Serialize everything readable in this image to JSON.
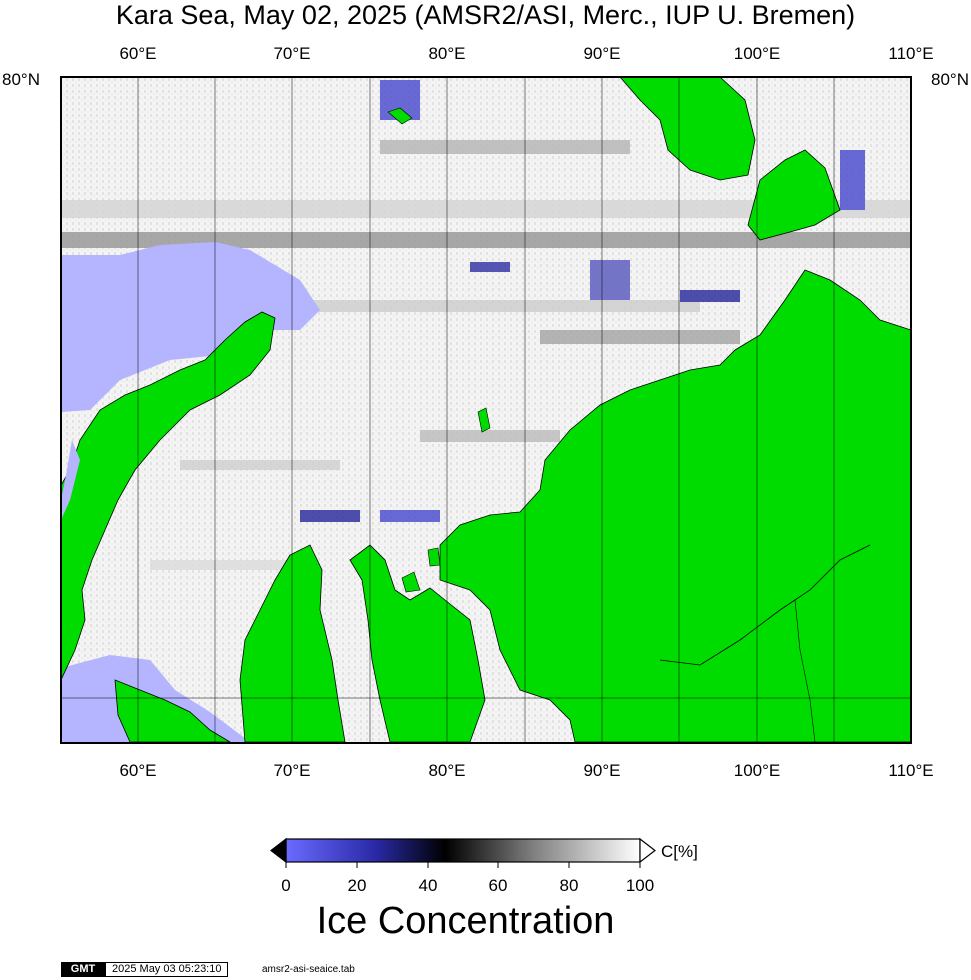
{
  "title": "Kara Sea, May 02, 2025 (AMSR2/ASI, Merc., IUP U. Bremen)",
  "map": {
    "projection": "Mercator",
    "lon_range": [
      55,
      110
    ],
    "lat_labels": [
      "80°N",
      "80°N"
    ],
    "lon_ticks": [
      {
        "lon": 60,
        "label": "60°E"
      },
      {
        "lon": 70,
        "label": "70°E"
      },
      {
        "lon": 80,
        "label": "80°E"
      },
      {
        "lon": 90,
        "label": "90°E"
      },
      {
        "lon": 100,
        "label": "100°E"
      },
      {
        "lon": 110,
        "label": "110°E"
      }
    ],
    "land_color": "#00dc00",
    "open_water_color": "#b4b4ff",
    "ice_color": "#ffffff"
  },
  "colorbar": {
    "ticks": [
      "0",
      "20",
      "40",
      "60",
      "80",
      "100"
    ],
    "unit": "C[%]",
    "title": "Ice Concentration",
    "colors": [
      "#5a5aff",
      "#1e1ea0",
      "#000000",
      "#808080",
      "#ffffff"
    ]
  },
  "footer": {
    "logo": "GMT",
    "timestamp": "2025 May 03 05:23:10",
    "file": "amsr2-asi-seaice.tab"
  }
}
